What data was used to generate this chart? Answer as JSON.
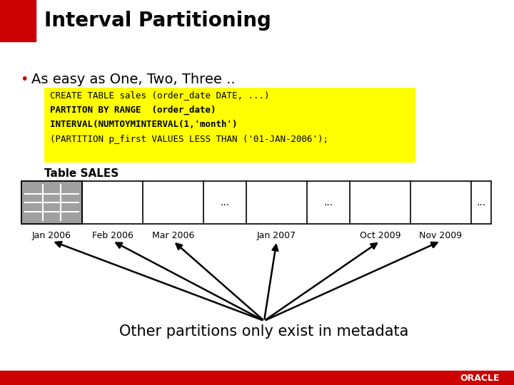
{
  "title": "Interval Partitioning",
  "bullet_text": "As easy as One, Two, Three ..",
  "code_lines": [
    "CREATE TABLE sales (order_date DATE, ...)",
    "PARTITON BY RANGE  (order_date)",
    "INTERVAL(NUMTOYMINTERVAL(1,'month')",
    "(PARTITION p_first VALUES LESS THAN ('01-JAN-2006');"
  ],
  "code_bold_lines": [
    1,
    2
  ],
  "table_label": "Table SALES",
  "partition_labels": [
    "Jan 2006",
    "Feb 2006",
    "Mar 2006",
    "Jan 2007",
    "Oct 2009",
    "Nov 2009"
  ],
  "bottom_text": "Other partitions only exist in metadata",
  "bg_color": "#ffffff",
  "code_bg": "#ffff00",
  "red_color": "#cc0000",
  "oracle_red": "#cc0000",
  "title_color": "#000000",
  "code_text_color": "#000000"
}
